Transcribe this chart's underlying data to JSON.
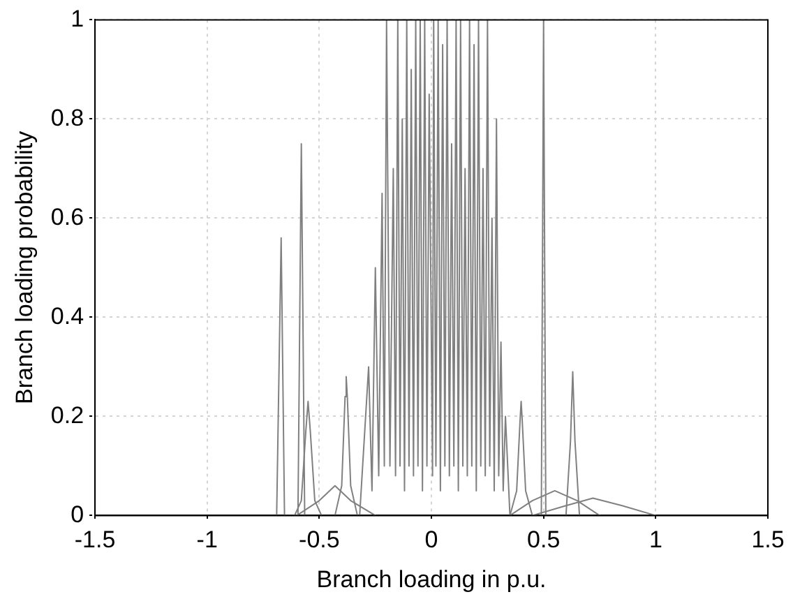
{
  "chart_data": {
    "type": "line",
    "xlabel": "Branch loading in p.u.",
    "ylabel": "Branch loading probability",
    "xlim": [
      -1.5,
      1.5
    ],
    "xticks": [
      -1.5,
      -1,
      -0.5,
      0,
      0.5,
      1,
      1.5
    ],
    "ylim": [
      0,
      1
    ],
    "yticks": [
      0,
      0.2,
      0.4,
      0.6,
      0.8,
      1
    ],
    "grid": true,
    "legend": false,
    "marker": "none",
    "line_style": "solid",
    "series": [
      {
        "color": "#808080",
        "x": [
          -0.69,
          -0.67,
          -0.655,
          -0.595,
          -0.58,
          -0.565
        ],
        "values": [
          0,
          0.56,
          0,
          0,
          0.75,
          0
        ]
      },
      {
        "color": "#808080",
        "x": [
          -0.61,
          -0.58,
          -0.56,
          -0.55,
          -0.54,
          -0.52,
          -0.49
        ],
        "values": [
          0,
          0.03,
          0.17,
          0.23,
          0.17,
          0.03,
          0
        ]
      },
      {
        "color": "#808080",
        "x": [
          -0.43,
          -0.4,
          -0.385,
          -0.38,
          -0.375,
          -0.36,
          -0.33
        ],
        "values": [
          0,
          0.06,
          0.24,
          0.28,
          0.24,
          0.06,
          0
        ]
      },
      {
        "color": "#808080",
        "x": [
          -0.6,
          -0.5,
          -0.43,
          -0.36,
          -0.25
        ],
        "values": [
          0,
          0.03,
          0.06,
          0.03,
          0
        ]
      },
      {
        "color": "#808080",
        "x": [
          -0.32,
          -0.28,
          -0.265,
          -0.25,
          -0.235,
          -0.22,
          -0.21,
          -0.2,
          -0.185,
          -0.17,
          -0.16,
          -0.15,
          -0.14,
          -0.13,
          -0.12,
          -0.11,
          -0.1,
          -0.09,
          -0.08,
          -0.07,
          -0.06,
          -0.05,
          -0.04,
          -0.03,
          -0.02,
          -0.01,
          0.005,
          0.01,
          0.02,
          0.03,
          0.04,
          0.05,
          0.06,
          0.07,
          0.08,
          0.09,
          0.1,
          0.11,
          0.12,
          0.13,
          0.14,
          0.15,
          0.16,
          0.17,
          0.18,
          0.19,
          0.2,
          0.21,
          0.22,
          0.23,
          0.24,
          0.25,
          0.26,
          0.27,
          0.28,
          0.29,
          0.3,
          0.31,
          0.32,
          0.33,
          0.35
        ],
        "values": [
          0,
          0.3,
          0.05,
          0.5,
          0.08,
          0.65,
          0.1,
          1,
          0.1,
          0.7,
          0.08,
          1,
          0.1,
          0.8,
          0.05,
          1,
          0.1,
          0.9,
          0.08,
          1,
          0.1,
          1,
          0.05,
          1,
          0.1,
          0.85,
          0.08,
          1,
          0.1,
          1,
          0.05,
          0.95,
          0.1,
          1,
          0.08,
          0.75,
          0.1,
          1,
          0.05,
          1,
          0.1,
          0.7,
          0.08,
          1,
          0.1,
          0.95,
          0.05,
          1,
          0.1,
          0.7,
          0.08,
          1,
          0.1,
          0.6,
          0.05,
          0.8,
          0.08,
          0.35,
          0.05,
          0.2,
          0
        ]
      },
      {
        "color": "#808080",
        "x": [
          0.35,
          0.38,
          0.395,
          0.4,
          0.405,
          0.42,
          0.45
        ],
        "values": [
          0,
          0.05,
          0.19,
          0.23,
          0.19,
          0.05,
          0
        ]
      },
      {
        "color": "#808080",
        "x": [
          0.49,
          0.5,
          0.51
        ],
        "values": [
          0,
          1,
          0
        ]
      },
      {
        "color": "#808080",
        "x": [
          0.6,
          0.62,
          0.63,
          0.64,
          0.66
        ],
        "values": [
          0,
          0.15,
          0.29,
          0.15,
          0
        ]
      },
      {
        "color": "#808080",
        "x": [
          0.35,
          0.45,
          0.55,
          0.65,
          0.75
        ],
        "values": [
          0,
          0.03,
          0.05,
          0.03,
          0
        ]
      },
      {
        "color": "#808080",
        "x": [
          0.45,
          0.6,
          0.72,
          0.85,
          1
        ],
        "values": [
          0,
          0.02,
          0.035,
          0.02,
          0
        ]
      }
    ]
  }
}
